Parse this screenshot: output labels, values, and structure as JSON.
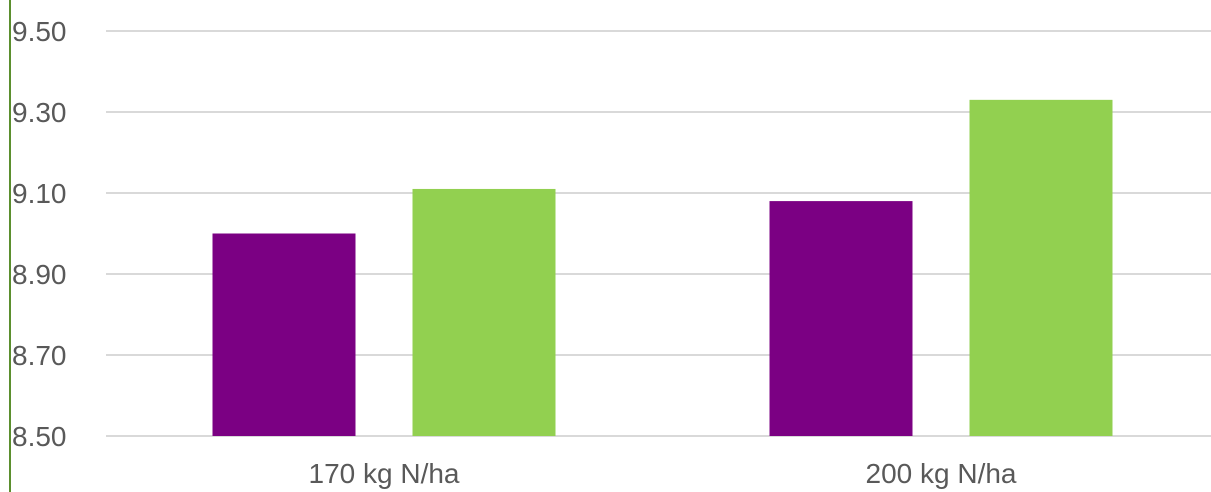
{
  "chart_data": {
    "type": "bar",
    "title": "",
    "xlabel": "",
    "ylabel": "",
    "categories": [
      "170 kg N/ha",
      "200 kg N/ha"
    ],
    "series": [
      {
        "color": "#7b0083",
        "values": [
          9.0,
          9.08
        ]
      },
      {
        "color": "#92d050",
        "values": [
          9.11,
          9.33
        ]
      }
    ],
    "ylim": [
      8.5,
      9.5
    ],
    "yticks": [
      8.5,
      8.7,
      8.9,
      9.1,
      9.3,
      9.5
    ],
    "ytick_labels": [
      "8.50",
      "8.70",
      "8.90",
      "9.10",
      "9.30",
      "9.50"
    ],
    "grid": true,
    "legend": "none",
    "axis_color": "#5b8f2e",
    "grid_color": "#d9d9d9"
  }
}
